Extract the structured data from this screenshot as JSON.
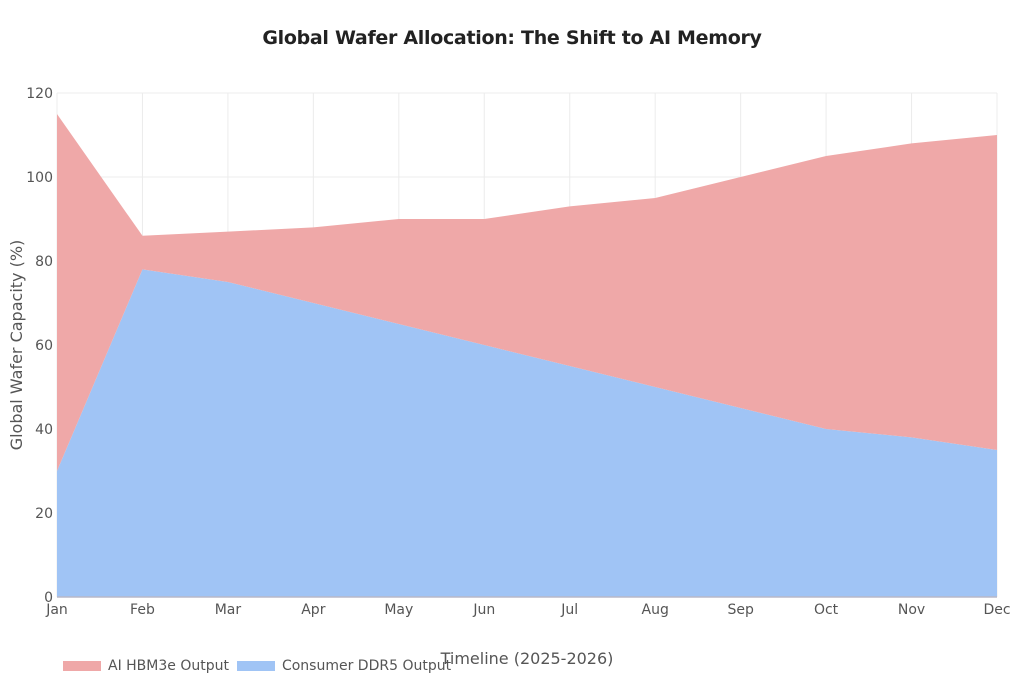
{
  "chart_data": {
    "type": "area",
    "stacked": true,
    "title": "Global Wafer Allocation: The Shift to AI Memory",
    "xlabel": "Timeline (2025-2026)",
    "ylabel": "Global Wafer Capacity (%)",
    "categories": [
      "Jan",
      "Feb",
      "Mar",
      "Apr",
      "May",
      "Jun",
      "Jul",
      "Aug",
      "Sep",
      "Oct",
      "Nov",
      "Dec"
    ],
    "series": [
      {
        "name": "Consumer DDR5 Output",
        "color": "#A0C4F5",
        "values": [
          30,
          78,
          75,
          70,
          65,
          60,
          55,
          50,
          45,
          40,
          38,
          35
        ]
      },
      {
        "name": "AI HBM3e Output",
        "color": "#EFA8A8",
        "values": [
          85,
          8,
          12,
          18,
          25,
          30,
          38,
          45,
          55,
          65,
          70,
          75
        ]
      }
    ],
    "stack_totals": [
      115,
      86,
      87,
      88,
      90,
      90,
      93,
      95,
      100,
      105,
      108,
      110
    ],
    "ylim": [
      0,
      120
    ],
    "yticks": [
      0,
      20,
      40,
      60,
      80,
      100,
      120
    ],
    "grid": true,
    "legend_position": "bottom-left"
  },
  "legend": [
    {
      "label": "AI HBM3e Output",
      "color": "#EFA8A8"
    },
    {
      "label": "Consumer DDR5 Output",
      "color": "#A0C4F5"
    }
  ]
}
